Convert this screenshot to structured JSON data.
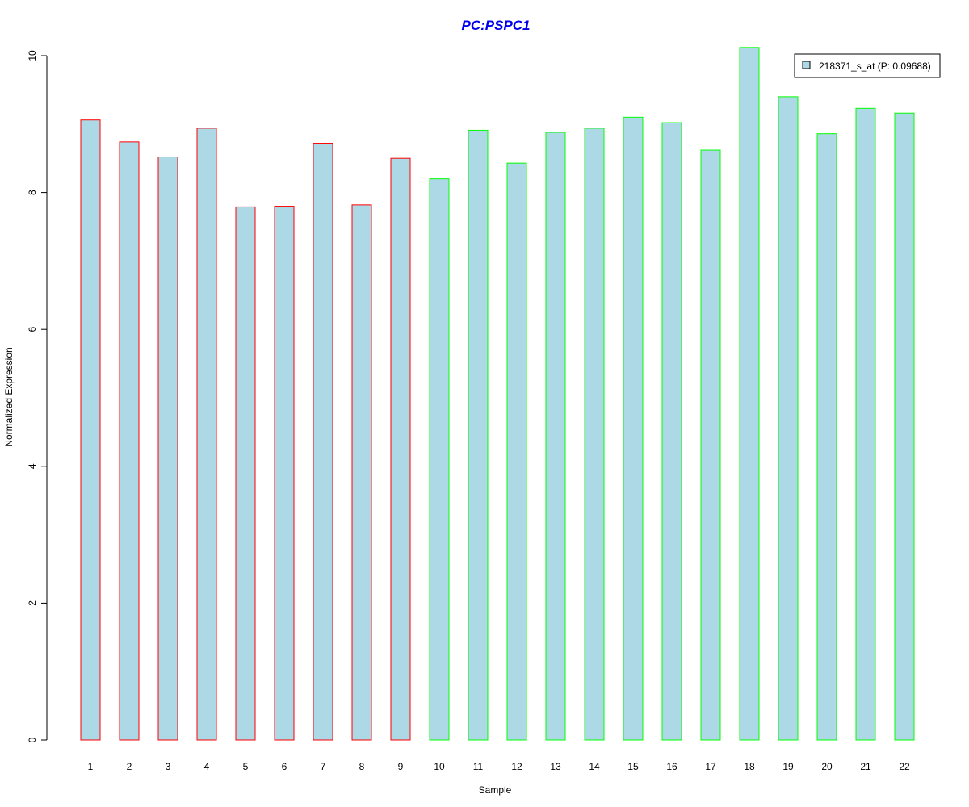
{
  "chart_data": {
    "type": "bar",
    "title": "PC:PSPC1",
    "title_color": "#0000ee",
    "xlabel": "Sample",
    "ylabel": "Normalized Expression",
    "ylim": [
      0,
      10
    ],
    "yticks": [
      0,
      2,
      4,
      6,
      8,
      10
    ],
    "categories": [
      "1",
      "2",
      "3",
      "4",
      "5",
      "6",
      "7",
      "8",
      "9",
      "10",
      "11",
      "12",
      "13",
      "14",
      "15",
      "16",
      "17",
      "18",
      "19",
      "20",
      "21",
      "22"
    ],
    "series": [
      {
        "name": "218371_s_at (P: 0.09688)",
        "fill_color": "#add8e6",
        "values": [
          9.06,
          8.74,
          8.52,
          8.94,
          7.79,
          7.8,
          8.72,
          7.82,
          8.5,
          8.2,
          8.91,
          8.43,
          8.88,
          8.94,
          9.1,
          9.02,
          8.62,
          10.12,
          9.4,
          8.86,
          9.23,
          9.16
        ],
        "border_colors": [
          "#ff0000",
          "#ff0000",
          "#ff0000",
          "#ff0000",
          "#ff0000",
          "#ff0000",
          "#ff0000",
          "#ff0000",
          "#ff0000",
          "#00ff00",
          "#00ff00",
          "#00ff00",
          "#00ff00",
          "#00ff00",
          "#00ff00",
          "#00ff00",
          "#00ff00",
          "#00ff00",
          "#00ff00",
          "#00ff00",
          "#00ff00",
          "#00ff00"
        ]
      }
    ],
    "legend_position": "top-right",
    "grid": false
  }
}
